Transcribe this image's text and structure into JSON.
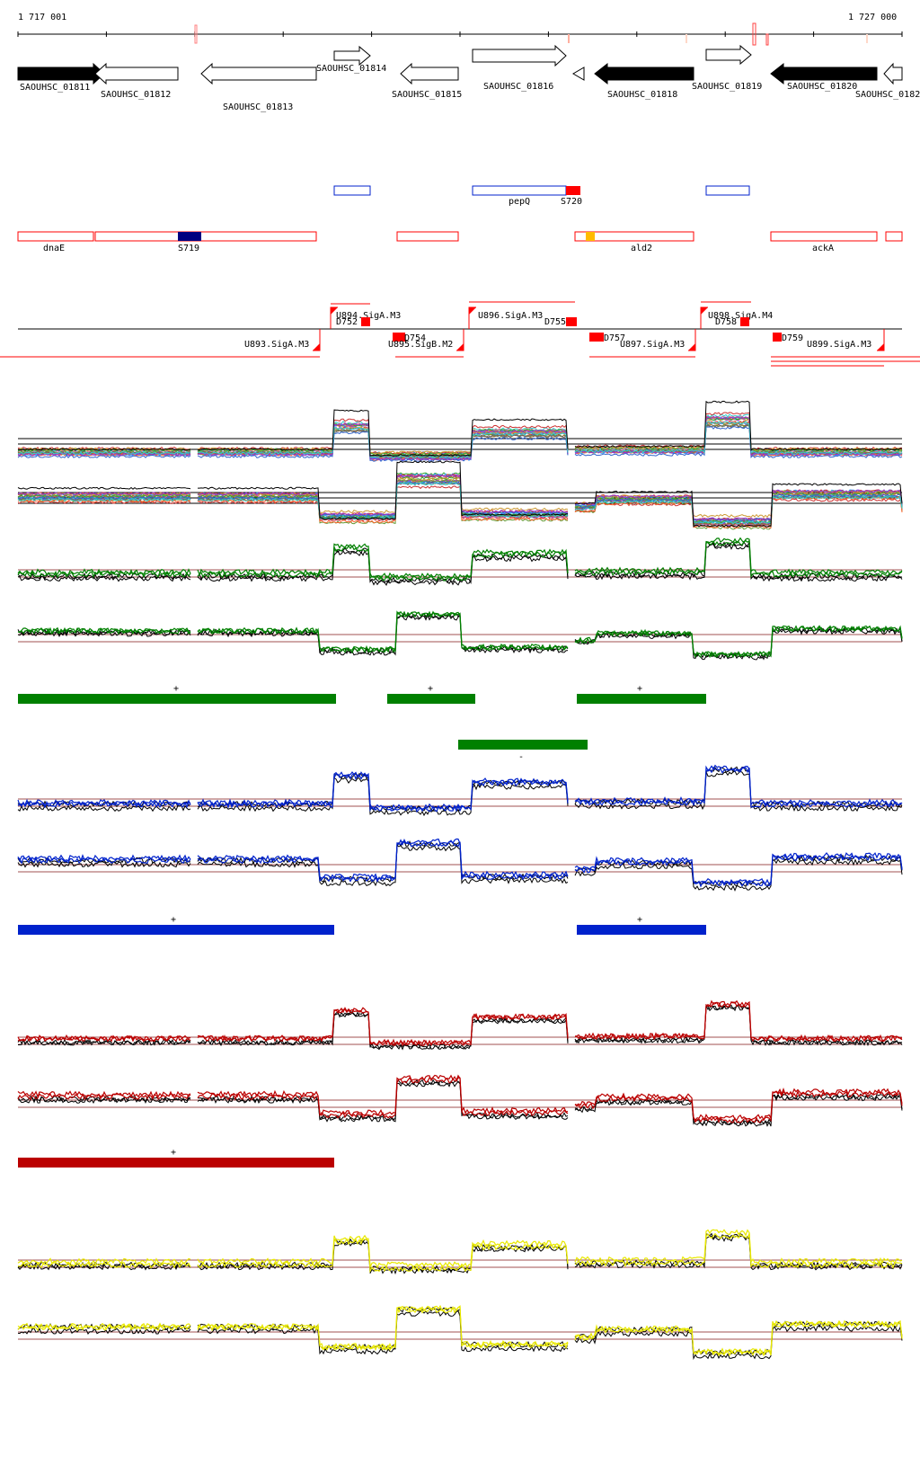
{
  "ruler": {
    "start_label": "1 717 001",
    "end_label": "1 727 000"
  },
  "genes": [
    {
      "label": "SAOUHSC_01811",
      "strand": "+",
      "fill": "black"
    },
    {
      "label": "SAOUHSC_01812",
      "strand": "-",
      "fill": "white"
    },
    {
      "label": "SAOUHSC_01813",
      "strand": "-",
      "fill": "white"
    },
    {
      "label": "SAOUHSC_01814",
      "strand": "+",
      "fill": "white"
    },
    {
      "label": "SAOUHSC_01815",
      "strand": "-",
      "fill": "white"
    },
    {
      "label": "SAOUHSC_01816",
      "strand": "+",
      "fill": "white"
    },
    {
      "label": "SAOUHSC_01818",
      "strand": "-",
      "fill": "black"
    },
    {
      "label": "SAOUHSC_01819",
      "strand": "+",
      "fill": "white"
    },
    {
      "label": "SAOUHSC_01820",
      "strand": "-",
      "fill": "black"
    },
    {
      "label": "SAOUHSC_0182",
      "strand": "-",
      "fill": "white"
    }
  ],
  "features_plus": [
    {
      "label": ""
    },
    {
      "label": "pepQ"
    },
    {
      "label": "S720"
    },
    {
      "label": ""
    }
  ],
  "features_minus": [
    {
      "label": "dnaE"
    },
    {
      "label": "S719"
    },
    {
      "label": ""
    },
    {
      "label": "ald2"
    },
    {
      "label": "ackA"
    }
  ],
  "promoters": [
    {
      "label": "U894.SigA.M3"
    },
    {
      "label": "D752"
    },
    {
      "label": "U896.SigA.M3"
    },
    {
      "label": "D755"
    },
    {
      "label": "U898.SigA.M4"
    },
    {
      "label": "D758"
    },
    {
      "label": "U893.SigA.M3"
    },
    {
      "label": "D754"
    },
    {
      "label": "U895.SigB.M2"
    },
    {
      "label": "D757"
    },
    {
      "label": "U897.SigA.M3"
    },
    {
      "label": "D759"
    },
    {
      "label": "U899.SigA.M3"
    }
  ],
  "segments": [
    {
      "strand": "+"
    },
    {
      "strand": "+"
    },
    {
      "strand": "+"
    },
    {
      "strand": "-"
    },
    {
      "strand": "+"
    },
    {
      "strand": "+"
    },
    {
      "strand": "+"
    }
  ],
  "colors": {
    "green": "#008000",
    "blue": "#0022cc",
    "red": "#bb0000",
    "yellow": "#e8e800",
    "annotation": "#ff0000",
    "sRNA": "#000080"
  }
}
